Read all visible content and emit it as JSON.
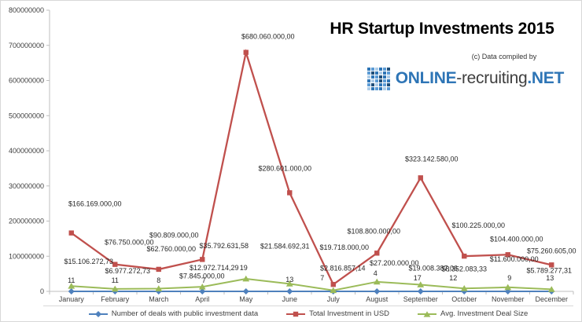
{
  "header": {
    "credit": "(c) Data compiled by"
  },
  "logo": {
    "part1": "ONLINE",
    "part2": "-recruiting",
    "part3": ".NET",
    "blue": "#2E75B6",
    "dark": "#3f3f3f"
  },
  "chart_data": {
    "type": "line",
    "title": "HR Startup Investments 2015",
    "categories": [
      "January",
      "February",
      "March",
      "April",
      "May",
      "June",
      "July",
      "August",
      "September",
      "October",
      "November",
      "December"
    ],
    "xlabel": "",
    "ylabel": "",
    "ylim": [
      0,
      800000000
    ],
    "y_ticks": [
      0,
      100000000,
      200000000,
      300000000,
      400000000,
      500000000,
      600000000,
      700000000,
      800000000
    ],
    "grid": false,
    "legend_position": "bottom",
    "series": [
      {
        "name": "Number of deals with public investment data",
        "color": "#4F81BD",
        "marker": "diamond",
        "values": [
          11,
          11,
          8,
          7,
          19,
          13,
          7,
          4,
          17,
          12,
          9,
          13
        ],
        "labels": [
          "11",
          "11",
          "8",
          "7",
          "19",
          "13",
          "7",
          "4",
          "17",
          "12",
          "9",
          "13"
        ]
      },
      {
        "name": "Total Investment in USD",
        "color": "#C0504D",
        "marker": "square",
        "values": [
          166169000,
          76750000,
          62760000,
          90809000,
          680060000,
          280601000,
          19718000,
          108800000,
          323142580,
          100225000,
          104400000,
          75260605
        ],
        "labels": [
          "$166.169.000,00",
          "$76.750.000,00",
          "$62.760.000,00",
          "$90.809.000,00",
          "$680.060.000,00",
          "$280.601.000,00",
          "$19.718.000,00",
          "$108.800.000,00",
          "$323.142.580,00",
          "$100.225.000,00",
          "$104.400.000,00",
          "$75.260.605,00"
        ]
      },
      {
        "name": "Avg. Investment Deal Size",
        "color": "#9BBB59",
        "marker": "triangle",
        "values": [
          15106272.73,
          6977272.73,
          7845000,
          12972714.29,
          35792631.58,
          21584692.31,
          2816857.14,
          27200000,
          19008387.06,
          8352083.33,
          11600000,
          5789277.31
        ],
        "labels": [
          "$15.106.272,73",
          "$6.977.272,73",
          "$7.845.000,00",
          "$12.972.714,29",
          "$35.792.631,58",
          "$21.584.692,31",
          "$2.816.857,14",
          "$27.200.000,00",
          "$19.008.387,06",
          "$8.352.083,33",
          "$11.600.000,00",
          "$5.789.277,31"
        ]
      }
    ]
  }
}
